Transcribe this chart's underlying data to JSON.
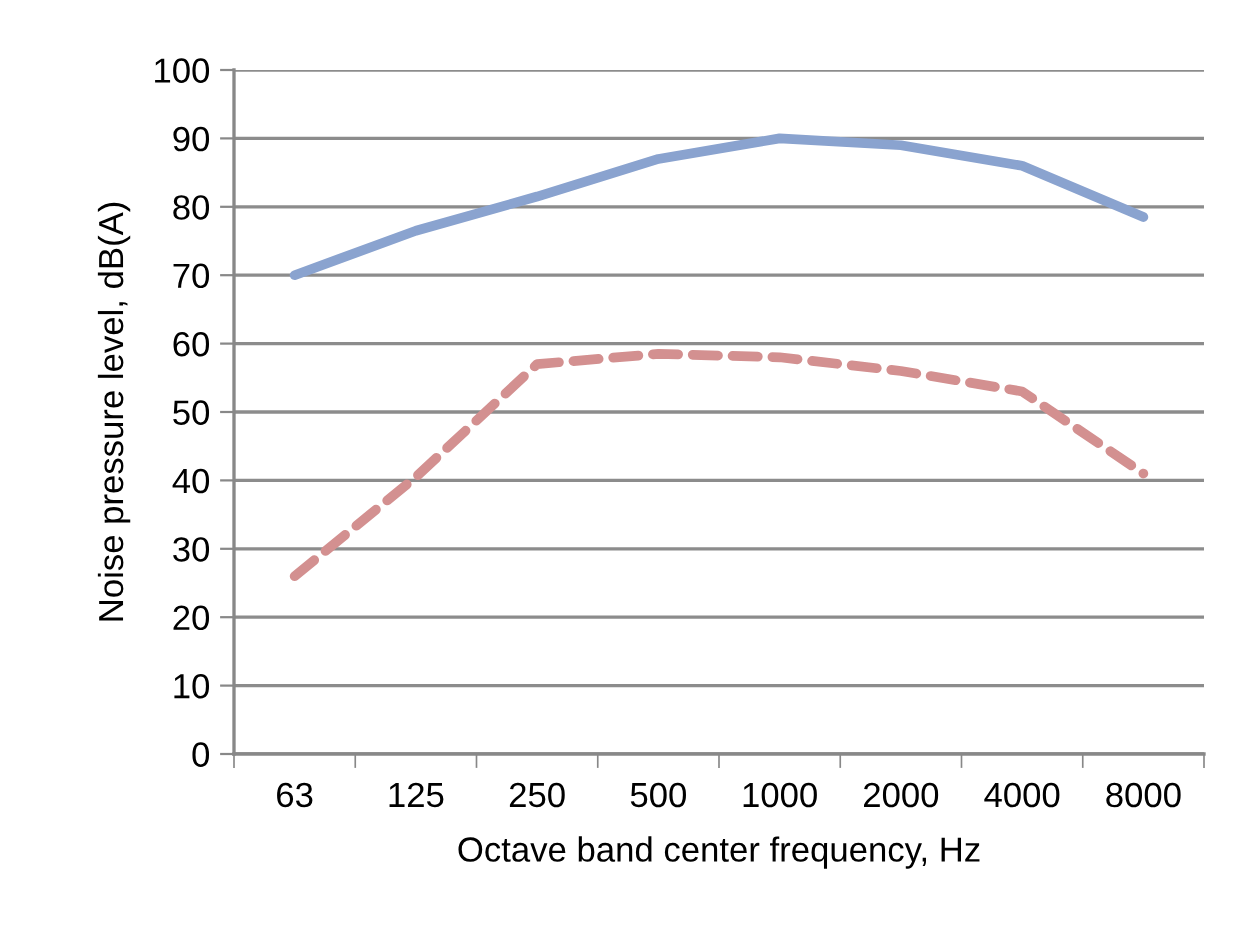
{
  "chart_data": {
    "type": "line",
    "xlabel": "Octave band center frequency, Hz",
    "ylabel": "Noise pressure level, dB(A)",
    "categories": [
      "63",
      "125",
      "250",
      "500",
      "1000",
      "2000",
      "4000",
      "8000"
    ],
    "series": [
      {
        "color": "#8aa3cf",
        "values": [
          70,
          76.5,
          81.5,
          87,
          90,
          89,
          86,
          78.5
        ],
        "line_style": "solid"
      },
      {
        "color": "#d39090",
        "values": [
          26,
          40.5,
          57,
          58.5,
          58,
          56,
          53,
          41
        ],
        "line_style": "dashed"
      }
    ],
    "ylim": [
      0,
      100
    ],
    "yticks": [
      0,
      10,
      20,
      30,
      40,
      50,
      60,
      70,
      80,
      90,
      100
    ],
    "grid": "y",
    "marker": "none"
  }
}
